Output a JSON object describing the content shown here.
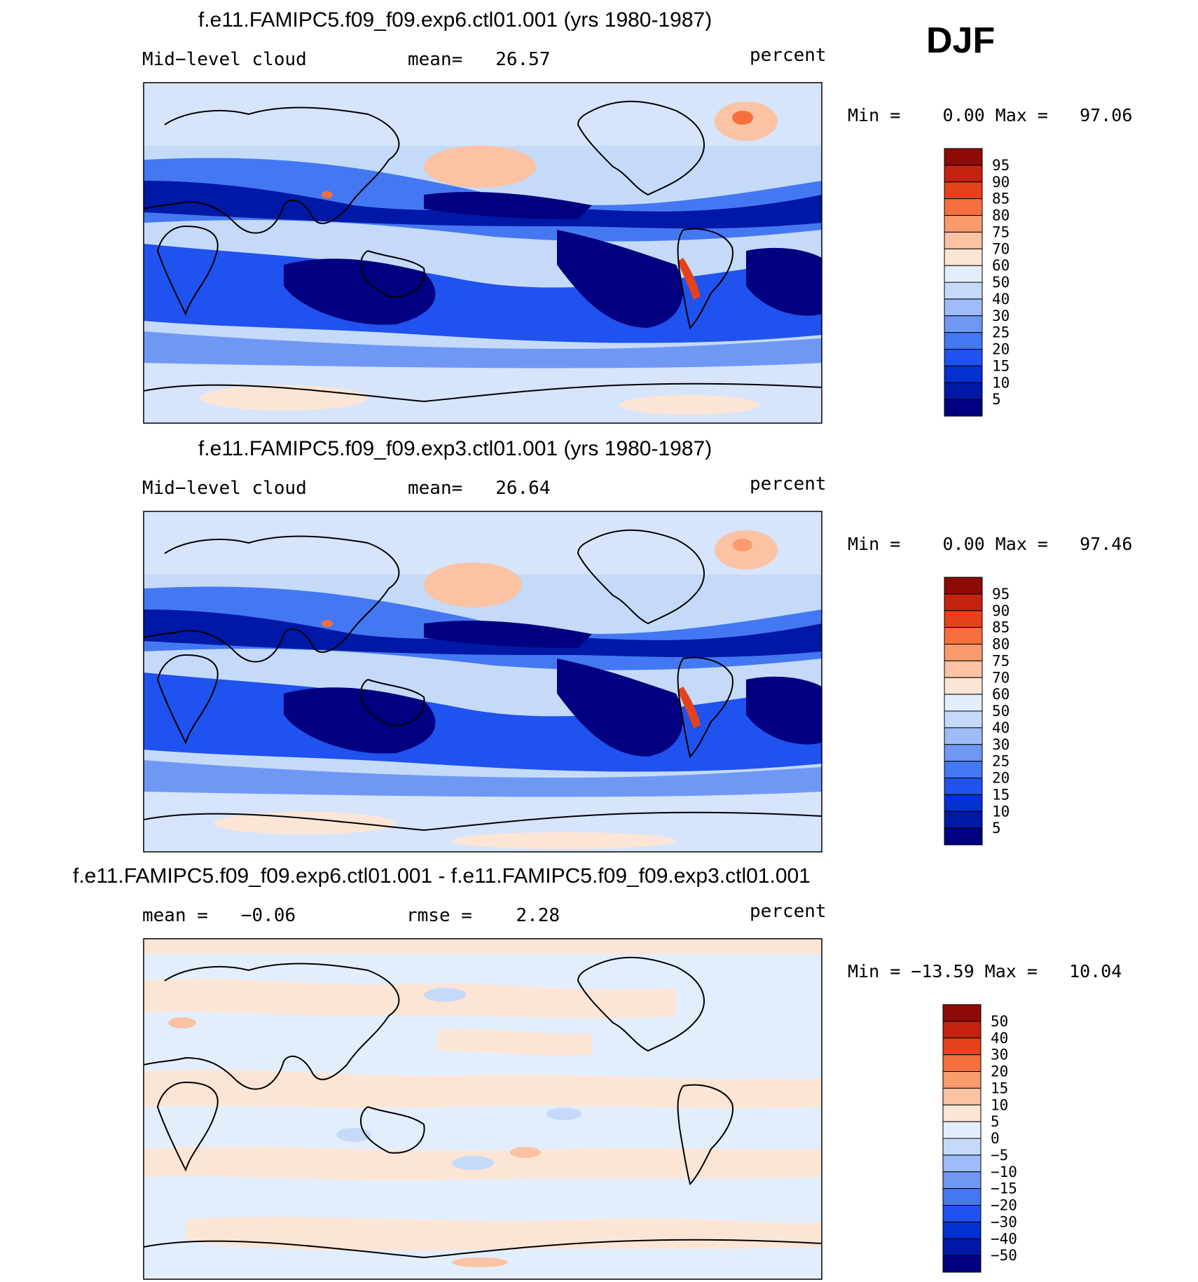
{
  "season": "DJF",
  "colors": {
    "abs_scale": [
      "#000080",
      "#0018a6",
      "#0330d0",
      "#1f52ee",
      "#4478f2",
      "#6f98f5",
      "#9dbcf8",
      "#c5daf9",
      "#e3eefc",
      "#fde5d5",
      "#fbc2a3",
      "#f99b6d",
      "#f56f3f",
      "#e5421c",
      "#c3220e",
      "#8e0a06"
    ],
    "diff_scale": [
      "#000080",
      "#0018a6",
      "#0330d0",
      "#1f52ee",
      "#4478f2",
      "#6f98f5",
      "#9dbcf8",
      "#c5daf9",
      "#e3eefc",
      "#fde5d5",
      "#fbc2a3",
      "#f99b6d",
      "#f56f3f",
      "#e5421c",
      "#c3220e",
      "#8e0a06"
    ]
  },
  "chart_data": [
    {
      "type": "heatmap",
      "title": "f.e11.FAMIPC5.f09_f09.exp6.ctl01.001 (yrs 1980-1987)",
      "variable": "Mid−level cloud",
      "mean_text": "mean=   26.57",
      "mean": 26.57,
      "units": "percent",
      "min_max_text": "Min =    0.00 Max =   97.06",
      "min": 0.0,
      "max": 97.06,
      "colorbar_levels": [
        "95",
        "90",
        "85",
        "80",
        "75",
        "70",
        "60",
        "50",
        "40",
        "30",
        "25",
        "20",
        "15",
        "10",
        "5"
      ]
    },
    {
      "type": "heatmap",
      "title": "f.e11.FAMIPC5.f09_f09.exp3.ctl01.001 (yrs 1980-1987)",
      "variable": "Mid−level cloud",
      "mean_text": "mean=   26.64",
      "mean": 26.64,
      "units": "percent",
      "min_max_text": "Min =    0.00 Max =   97.46",
      "min": 0.0,
      "max": 97.46,
      "colorbar_levels": [
        "95",
        "90",
        "85",
        "80",
        "75",
        "70",
        "60",
        "50",
        "40",
        "30",
        "25",
        "20",
        "15",
        "10",
        "5"
      ]
    },
    {
      "type": "heatmap",
      "title": "f.e11.FAMIPC5.f09_f09.exp6.ctl01.001 - f.e11.FAMIPC5.f09_f09.exp3.ctl01.001",
      "mean_text": "mean =   −0.06",
      "mean": -0.06,
      "rmse_text": "rmse =    2.28",
      "rmse": 2.28,
      "units": "percent",
      "min_max_text": "Min = −13.59 Max =   10.04",
      "min": -13.59,
      "max": 10.04,
      "colorbar_levels": [
        "50",
        "40",
        "30",
        "20",
        "15",
        "10",
        "5",
        "0",
        "−5",
        "−10",
        "−15",
        "−20",
        "−30",
        "−40",
        "−50"
      ]
    }
  ]
}
